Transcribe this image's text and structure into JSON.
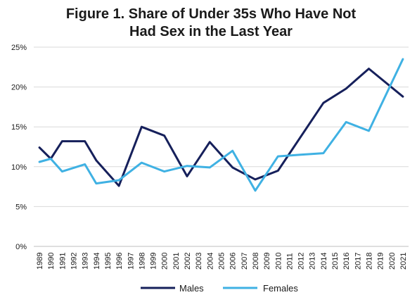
{
  "chart_data": {
    "type": "line",
    "title": "Figure 1. Share of Under 35s Who Have Not",
    "subtitle": "Had Sex in the Last Year",
    "xlabel": "",
    "ylabel": "",
    "ylim": [
      0,
      25
    ],
    "yticks": [
      "0%",
      "5%",
      "10%",
      "15%",
      "20%",
      "25%"
    ],
    "grid": true,
    "legend_position": "bottom",
    "categories": [
      "1989",
      "1990",
      "1991",
      "1992",
      "1993",
      "1994",
      "1995",
      "1996",
      "1997",
      "1998",
      "1999",
      "2000",
      "2001",
      "2002",
      "2003",
      "2004",
      "2005",
      "2006",
      "2007",
      "2008",
      "2009",
      "2010",
      "2011",
      "2012",
      "2013",
      "2014",
      "2015",
      "2016",
      "2017",
      "2018",
      "2019",
      "2020",
      "2021"
    ],
    "points": [
      {
        "series": 0,
        "x": "1989",
        "y": 12.4
      },
      {
        "series": 0,
        "x": "1990",
        "y": 11.0
      },
      {
        "series": 0,
        "x": "1991",
        "y": 13.2
      },
      {
        "series": 0,
        "x": "1993",
        "y": 13.2
      },
      {
        "series": 0,
        "x": "1994",
        "y": 10.8
      },
      {
        "series": 0,
        "x": "1996",
        "y": 7.6
      },
      {
        "series": 0,
        "x": "1998",
        "y": 15.0
      },
      {
        "series": 0,
        "x": "2000",
        "y": 13.9
      },
      {
        "series": 0,
        "x": "2002",
        "y": 8.8
      },
      {
        "series": 0,
        "x": "2004",
        "y": 13.1
      },
      {
        "series": 0,
        "x": "2006",
        "y": 9.9
      },
      {
        "series": 0,
        "x": "2008",
        "y": 8.4
      },
      {
        "series": 0,
        "x": "2010",
        "y": 9.5
      },
      {
        "series": 0,
        "x": "2014",
        "y": 18.0
      },
      {
        "series": 0,
        "x": "2016",
        "y": 19.8
      },
      {
        "series": 0,
        "x": "2018",
        "y": 22.3
      },
      {
        "series": 0,
        "x": "2021",
        "y": 18.8
      },
      {
        "series": 1,
        "x": "1989",
        "y": 10.6
      },
      {
        "series": 1,
        "x": "1990",
        "y": 11.0
      },
      {
        "series": 1,
        "x": "1991",
        "y": 9.4
      },
      {
        "series": 1,
        "x": "1993",
        "y": 10.3
      },
      {
        "series": 1,
        "x": "1994",
        "y": 7.9
      },
      {
        "series": 1,
        "x": "1996",
        "y": 8.3
      },
      {
        "series": 1,
        "x": "1998",
        "y": 10.5
      },
      {
        "series": 1,
        "x": "2000",
        "y": 9.4
      },
      {
        "series": 1,
        "x": "2002",
        "y": 10.1
      },
      {
        "series": 1,
        "x": "2004",
        "y": 9.9
      },
      {
        "series": 1,
        "x": "2006",
        "y": 12.0
      },
      {
        "series": 1,
        "x": "2008",
        "y": 7.0
      },
      {
        "series": 1,
        "x": "2010",
        "y": 11.3
      },
      {
        "series": 1,
        "x": "2012",
        "y": 11.5
      },
      {
        "series": 1,
        "x": "2014",
        "y": 11.7
      },
      {
        "series": 1,
        "x": "2016",
        "y": 15.6
      },
      {
        "series": 1,
        "x": "2018",
        "y": 14.5
      },
      {
        "series": 1,
        "x": "2021",
        "y": 23.5
      }
    ],
    "series": [
      {
        "name": "Males",
        "color": "#16205b"
      },
      {
        "name": "Females",
        "color": "#3fb1e3"
      }
    ]
  }
}
